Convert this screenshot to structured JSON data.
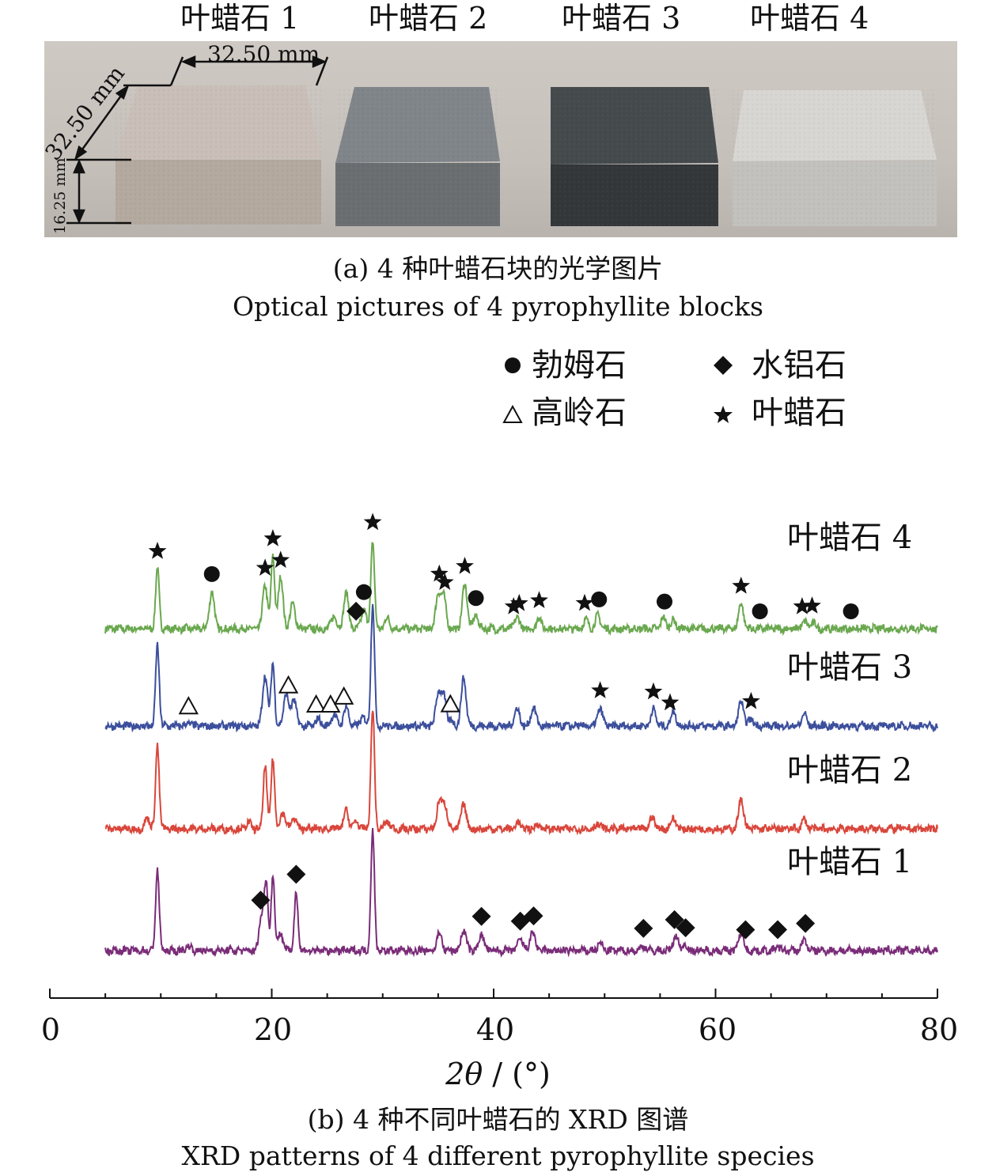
{
  "panel_a": {
    "block_labels": [
      "叶蜡石 1",
      "叶蜡石 2",
      "叶蜡石 3",
      "叶蜡石 4"
    ],
    "dimensions": {
      "width": "32.50 mm",
      "depth": "32.50 mm",
      "height": "16.25 mm"
    },
    "block_colors": [
      "#b8aca3",
      "#6f7374",
      "#3a3e40",
      "#c9c7c3"
    ],
    "caption_cn": "(a) 4 种叶蜡石块的光学图片",
    "caption_en": "Optical pictures of 4 pyrophyllite blocks"
  },
  "panel_b": {
    "legend": [
      {
        "symbol": "circle",
        "label": "勃姆石"
      },
      {
        "symbol": "diamond",
        "label": "水铝石"
      },
      {
        "symbol": "triangle-open",
        "label": "高岭石"
      },
      {
        "symbol": "star",
        "label": "叶蜡石"
      }
    ],
    "xlabel_var": "2θ",
    "xlabel_unit": " / (°)",
    "caption_cn": "(b) 4 种不同叶蜡石的 XRD 图谱",
    "caption_en": "XRD patterns of 4 different pyrophyllite species"
  },
  "chart_data": {
    "type": "line",
    "xlim": [
      0,
      80
    ],
    "x_ticks": [
      "0",
      "20",
      "40",
      "60",
      "80"
    ],
    "x_range_data": [
      5,
      80
    ],
    "series": [
      {
        "name": "叶蜡石 4",
        "color": "#6aa84f",
        "peaks": [
          [
            9.7,
            1.0
          ],
          [
            14.6,
            0.62
          ],
          [
            19.4,
            0.72
          ],
          [
            20.1,
            1.2
          ],
          [
            20.8,
            0.85
          ],
          [
            21.9,
            0.42
          ],
          [
            25.6,
            0.22
          ],
          [
            26.7,
            0.6
          ],
          [
            28.3,
            0.32
          ],
          [
            29.1,
            1.48
          ],
          [
            30.4,
            0.18
          ],
          [
            35.0,
            0.58
          ],
          [
            35.5,
            0.52
          ],
          [
            37.4,
            0.75
          ],
          [
            38.4,
            0.22
          ],
          [
            42.1,
            0.2
          ],
          [
            44.1,
            0.18
          ],
          [
            48.3,
            0.15
          ],
          [
            49.4,
            0.22
          ],
          [
            55.3,
            0.18
          ],
          [
            56.2,
            0.14
          ],
          [
            62.3,
            0.42
          ],
          [
            68.0,
            0.12
          ],
          [
            68.8,
            0.1
          ]
        ],
        "markers": [
          [
            9.7,
            "star"
          ],
          [
            14.6,
            "circle"
          ],
          [
            19.4,
            "star"
          ],
          [
            20.1,
            "star"
          ],
          [
            20.8,
            "star"
          ],
          [
            27.6,
            "diamond"
          ],
          [
            28.3,
            "circle"
          ],
          [
            29.1,
            "star"
          ],
          [
            35.1,
            "star"
          ],
          [
            35.6,
            "star"
          ],
          [
            37.4,
            "star"
          ],
          [
            38.4,
            "circle"
          ],
          [
            41.8,
            "star"
          ],
          [
            42.3,
            "star"
          ],
          [
            44.1,
            "star"
          ],
          [
            48.2,
            "star"
          ],
          [
            49.5,
            "circle"
          ],
          [
            55.4,
            "circle"
          ],
          [
            62.3,
            "star"
          ],
          [
            64.0,
            "circle"
          ],
          [
            67.8,
            "star"
          ],
          [
            68.7,
            "star"
          ],
          [
            72.2,
            "circle"
          ]
        ]
      },
      {
        "name": "叶蜡石 3",
        "color": "#3c4f9c",
        "peaks": [
          [
            9.7,
            1.35
          ],
          [
            12.5,
            0.05
          ],
          [
            19.4,
            0.85
          ],
          [
            20.1,
            1.05
          ],
          [
            21.3,
            0.55
          ],
          [
            22.0,
            0.45
          ],
          [
            24.2,
            0.12
          ],
          [
            25.6,
            0.2
          ],
          [
            26.7,
            0.32
          ],
          [
            28.2,
            0.15
          ],
          [
            29.1,
            2.05
          ],
          [
            35.0,
            0.55
          ],
          [
            35.5,
            0.5
          ],
          [
            36.2,
            0.08
          ],
          [
            37.3,
            0.8
          ],
          [
            42.1,
            0.3
          ],
          [
            43.6,
            0.32
          ],
          [
            49.6,
            0.3
          ],
          [
            54.4,
            0.28
          ],
          [
            56.2,
            0.25
          ],
          [
            62.3,
            0.42
          ],
          [
            63.2,
            0.12
          ],
          [
            68.0,
            0.2
          ]
        ],
        "markers": [
          [
            12.5,
            "triangle-open"
          ],
          [
            21.5,
            "triangle-open"
          ],
          [
            24.0,
            "triangle-open"
          ],
          [
            25.3,
            "triangle-open"
          ],
          [
            26.5,
            "triangle-open"
          ],
          [
            36.1,
            "triangle-open"
          ],
          [
            49.6,
            "star"
          ],
          [
            54.4,
            "star"
          ],
          [
            55.9,
            "star"
          ],
          [
            63.2,
            "star"
          ]
        ]
      },
      {
        "name": "叶蜡石 2",
        "color": "#d9463b",
        "peaks": [
          [
            8.8,
            0.18
          ],
          [
            9.7,
            1.4
          ],
          [
            17.9,
            0.1
          ],
          [
            19.4,
            1.08
          ],
          [
            20.1,
            1.18
          ],
          [
            21.0,
            0.28
          ],
          [
            22.0,
            0.18
          ],
          [
            26.7,
            0.3
          ],
          [
            27.6,
            0.12
          ],
          [
            29.1,
            2.0
          ],
          [
            30.4,
            0.12
          ],
          [
            35.1,
            0.45
          ],
          [
            35.6,
            0.4
          ],
          [
            37.3,
            0.42
          ],
          [
            42.2,
            0.1
          ],
          [
            44.0,
            0.08
          ],
          [
            49.4,
            0.08
          ],
          [
            54.3,
            0.2
          ],
          [
            56.2,
            0.18
          ],
          [
            62.3,
            0.5
          ],
          [
            68.0,
            0.15
          ]
        ],
        "markers": []
      },
      {
        "name": "叶蜡石 1",
        "color": "#7a2c78",
        "peaks": [
          [
            9.7,
            1.35
          ],
          [
            12.5,
            0.08
          ],
          [
            19.1,
            0.6
          ],
          [
            19.5,
            1.08
          ],
          [
            20.1,
            1.25
          ],
          [
            20.8,
            0.3
          ],
          [
            22.2,
            0.98
          ],
          [
            29.1,
            2.0
          ],
          [
            35.1,
            0.3
          ],
          [
            37.3,
            0.35
          ],
          [
            38.9,
            0.28
          ],
          [
            42.4,
            0.2
          ],
          [
            43.5,
            0.32
          ],
          [
            49.6,
            0.12
          ],
          [
            53.5,
            0.08
          ],
          [
            56.4,
            0.25
          ],
          [
            57.2,
            0.1
          ],
          [
            62.3,
            0.3
          ],
          [
            65.6,
            0.06
          ],
          [
            68.0,
            0.18
          ]
        ],
        "markers": [
          [
            19.0,
            "diamond"
          ],
          [
            22.2,
            "diamond"
          ],
          [
            38.9,
            "diamond"
          ],
          [
            42.4,
            "diamond"
          ],
          [
            43.6,
            "diamond"
          ],
          [
            53.5,
            "diamond"
          ],
          [
            56.3,
            "diamond"
          ],
          [
            57.3,
            "diamond"
          ],
          [
            62.7,
            "diamond"
          ],
          [
            65.6,
            "diamond"
          ],
          [
            68.1,
            "diamond"
          ]
        ]
      }
    ]
  }
}
